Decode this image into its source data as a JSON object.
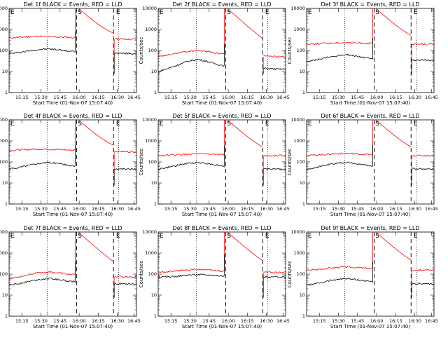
{
  "chart_data": [
    {
      "title": "Det 1f BLACK = Events, RED = LLD",
      "red": [
        400,
        420,
        450,
        470,
        460,
        440,
        420,
        400,
        390,
        380,
        370,
        360,
        350,
        340
      ],
      "black": [
        70,
        80,
        95,
        110,
        120,
        110,
        95,
        85,
        80,
        78,
        75,
        74,
        72,
        70
      ],
      "hasS": true,
      "hasE": true,
      "hasLeftE": true,
      "markers": [
        "E",
        "S",
        "E"
      ]
    },
    {
      "title": "Det 2f BLACK = Events, RED = LLD",
      "red": [
        50,
        60,
        75,
        90,
        100,
        90,
        75,
        65,
        60,
        58,
        55,
        54,
        52,
        50
      ],
      "black": [
        10,
        14,
        20,
        30,
        38,
        30,
        22,
        18,
        16,
        15,
        14,
        14,
        13,
        13
      ],
      "hasS": true,
      "hasE": true,
      "hasLeftE": true,
      "markers": [
        "E",
        "S",
        "E"
      ]
    },
    {
      "title": "Det 3f BLACK = Events, RED = LLD",
      "red": [
        200,
        210,
        220,
        230,
        240,
        230,
        220,
        210,
        205,
        200,
        200,
        200,
        200,
        200
      ],
      "black": [
        30,
        35,
        45,
        55,
        65,
        55,
        45,
        40,
        38,
        36,
        35,
        35,
        35,
        35
      ],
      "hasS": true,
      "hasE": true,
      "hasLeftE": true,
      "markers": [
        "E",
        "S",
        "E"
      ]
    },
    {
      "title": "Det 4f BLACK = Events, RED = LLD",
      "red": [
        350,
        370,
        390,
        410,
        400,
        390,
        370,
        360,
        350,
        340,
        330,
        320,
        310,
        300
      ],
      "black": [
        45,
        55,
        70,
        85,
        95,
        85,
        70,
        60,
        55,
        52,
        50,
        48,
        46,
        45
      ],
      "hasS": true,
      "hasE": true,
      "hasLeftE": true,
      "markers": [
        "E",
        "S",
        "E"
      ]
    },
    {
      "title": "Det 5f BLACK = Events, RED = LLD",
      "red": [
        200,
        210,
        220,
        230,
        240,
        235,
        225,
        215,
        210,
        205,
        200,
        200,
        200,
        200
      ],
      "black": [
        45,
        55,
        70,
        85,
        95,
        85,
        70,
        60,
        55,
        52,
        50,
        48,
        46,
        45
      ],
      "hasS": true,
      "hasE": true,
      "hasLeftE": true,
      "markers": [
        "E",
        "S",
        "E"
      ]
    },
    {
      "title": "Det 6f BLACK = Events, RED = LLD",
      "red": [
        200,
        215,
        230,
        245,
        255,
        245,
        230,
        215,
        210,
        205,
        200,
        200,
        200,
        200
      ],
      "black": [
        45,
        55,
        70,
        85,
        95,
        85,
        70,
        60,
        55,
        52,
        50,
        48,
        46,
        45
      ],
      "hasS": true,
      "hasE": true,
      "hasLeftE": true,
      "markers": [
        "E",
        "S",
        "E"
      ]
    },
    {
      "title": "Det 7f BLACK = Events, RED = LLD",
      "red": [
        60,
        75,
        95,
        115,
        125,
        115,
        100,
        90,
        85,
        80,
        78,
        76,
        74,
        72
      ],
      "black": [
        30,
        35,
        45,
        55,
        62,
        55,
        48,
        42,
        40,
        38,
        36,
        35,
        34,
        33
      ],
      "hasS": true,
      "hasE": true,
      "hasLeftE": true,
      "markers": [
        "E",
        "S",
        "E"
      ]
    },
    {
      "title": "Det 8f BLACK = Events, RED = LLD",
      "red": [
        120,
        130,
        145,
        160,
        170,
        160,
        145,
        135,
        130,
        128,
        126,
        124,
        122,
        120
      ],
      "black": [
        70,
        75,
        80,
        90,
        95,
        90,
        85,
        80,
        78,
        76,
        75,
        74,
        73,
        72
      ],
      "hasS": true,
      "hasE": true,
      "hasLeftE": true,
      "markers": [
        "E",
        "S",
        "E"
      ]
    },
    {
      "title": "Det 9f BLACK = Events, RED = LLD",
      "red": [
        150,
        165,
        185,
        205,
        220,
        210,
        190,
        175,
        170,
        165,
        160,
        158,
        156,
        155
      ],
      "black": [
        30,
        35,
        45,
        55,
        62,
        55,
        48,
        42,
        40,
        38,
        36,
        35,
        34,
        33
      ],
      "hasS": true,
      "hasE": true,
      "hasLeftE": true,
      "markers": [
        "E",
        "S",
        "E"
      ]
    }
  ],
  "axes": {
    "ylabel": "Counts/sec",
    "xlabel": "Start Time (01-Nov-07 15:07:40)",
    "xticks": [
      "15:15",
      "15:30",
      "15:45",
      "16:00",
      "16:15",
      "16:30",
      "16:45"
    ],
    "yticks": [
      "1",
      "10",
      "100",
      "1000",
      "10000"
    ],
    "ylog": true,
    "ylim": [
      1,
      10000
    ]
  },
  "colors": {
    "events": "#000000",
    "lld": "#ff0000"
  }
}
